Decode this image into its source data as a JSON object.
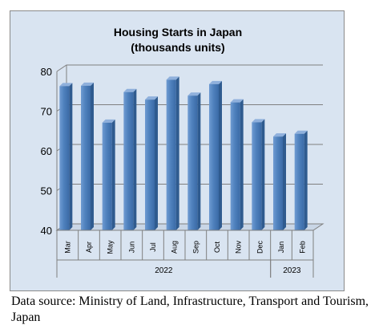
{
  "chart_data": {
    "type": "bar",
    "title": "Housing Starts in Japan",
    "subtitle": "(thousands units)",
    "categories": [
      "Mar",
      "Apr",
      "May",
      "Jun",
      "Jul",
      "Aug",
      "Sep",
      "Oct",
      "Nov",
      "Dec",
      "Jan",
      "Feb"
    ],
    "category_groups": [
      {
        "label": "2022",
        "categories": [
          "Mar",
          "Apr",
          "May",
          "Jun",
          "Jul",
          "Aug",
          "Sep",
          "Oct",
          "Nov",
          "Dec"
        ]
      },
      {
        "label": "2023",
        "categories": [
          "Jan",
          "Feb"
        ]
      }
    ],
    "values": [
      76.3,
      76.4,
      67.1,
      74.8,
      72.9,
      77.9,
      73.9,
      76.8,
      72.2,
      67.2,
      63.6,
      64.3
    ],
    "ylim": [
      40,
      80
    ],
    "yticks": [
      40,
      50,
      60,
      70,
      80
    ],
    "xlabel": "",
    "ylabel": "",
    "grid": true,
    "bar_color": "#4f81bd",
    "background_color": "#d9e4f1"
  },
  "source_note": "Data source: Ministry of Land, Infrastructure, Transport and Tourism, Japan"
}
